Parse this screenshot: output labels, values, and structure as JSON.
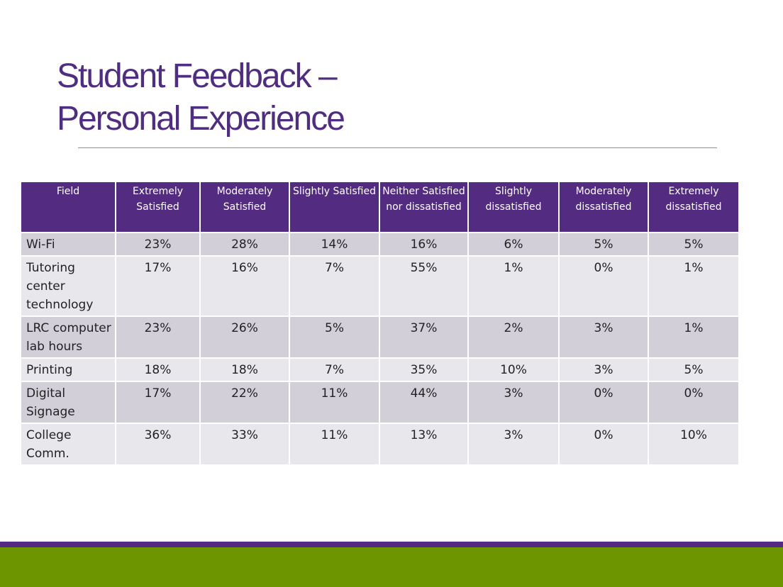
{
  "slide": {
    "title_line1": "Student Feedback –",
    "title_line2": "Personal Experience"
  },
  "table": {
    "headers": [
      "Field",
      "Extremely Satisfied",
      "Moderately Satisfied",
      "Slightly Satisfied",
      "Neither Satisfied nor dissatisfied",
      "Slightly dissatisfied",
      "Moderately dissatisfied",
      "Extremely dissatisfied"
    ],
    "rows": [
      [
        "Wi-Fi",
        "23%",
        "28%",
        "14%",
        "16%",
        "6%",
        "5%",
        "5%"
      ],
      [
        "Tutoring center technology",
        "17%",
        "16%",
        "7%",
        "55%",
        "1%",
        "0%",
        "1%"
      ],
      [
        "LRC computer lab hours",
        "23%",
        "26%",
        "5%",
        "37%",
        "2%",
        "3%",
        "1%"
      ],
      [
        "Printing",
        "18%",
        "18%",
        "7%",
        "35%",
        "10%",
        "3%",
        "5%"
      ],
      [
        "Digital Signage",
        "17%",
        "22%",
        "11%",
        "44%",
        "3%",
        "0%",
        "0%"
      ],
      [
        "College Comm.",
        "36%",
        "33%",
        "11%",
        "13%",
        "3%",
        "0%",
        "10%"
      ]
    ]
  },
  "colors": {
    "accent_purple": "#532c81",
    "footer_green": "#6d9500",
    "row_dark": "#d2cfd9",
    "row_light": "#e8e7ec"
  }
}
